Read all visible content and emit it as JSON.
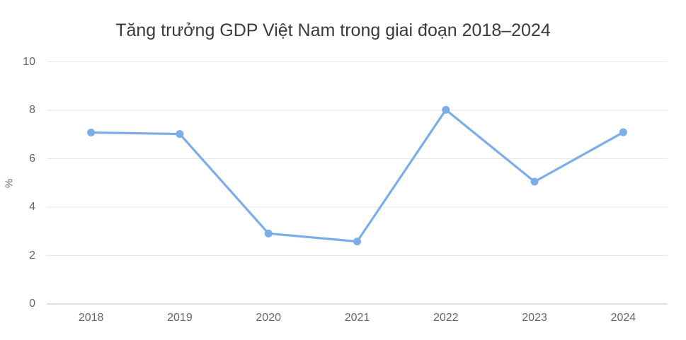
{
  "chart_data": {
    "type": "line",
    "title": "Tăng trưởng GDP Việt Nam trong giai đoạn 2018–2024",
    "xlabel": "",
    "ylabel": "%",
    "categories": [
      "2018",
      "2019",
      "2020",
      "2021",
      "2022",
      "2023",
      "2024"
    ],
    "values": [
      7.08,
      7.02,
      2.91,
      2.58,
      8.02,
      5.05,
      7.09
    ],
    "ylim": [
      0,
      10
    ],
    "yticks": [
      0,
      2,
      4,
      6,
      8,
      10
    ],
    "grid": true,
    "legend": false,
    "colors": {
      "series": "#7cade9",
      "grid": "#e7e7e7",
      "axis_line": "#ccd6eb",
      "title_text": "#3a3a3a",
      "tick_text": "#666666"
    }
  }
}
